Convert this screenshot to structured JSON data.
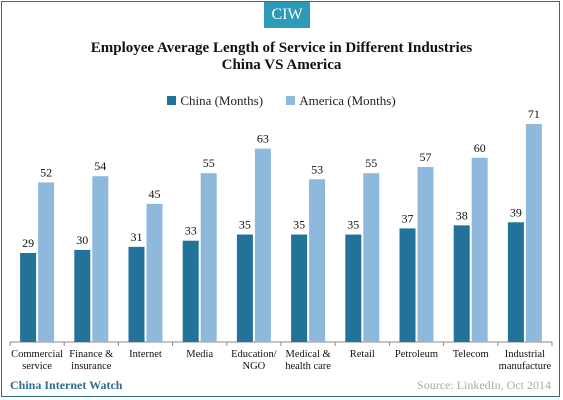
{
  "logo": "CIW",
  "watermark": "China Internet Watch",
  "source": "Source: LinkedIn, Oct 2014",
  "colors": {
    "china": "#22729a",
    "america": "#8fb9dc",
    "frame": "#2b6e8c",
    "logo_bg": "#2e9ab8"
  },
  "chart_data": {
    "type": "bar",
    "title": "Employee Average Length of Service in Different Industries",
    "subtitle": "China VS America",
    "legend_position": "top-center",
    "grid": false,
    "ylim": [
      0,
      75
    ],
    "categories": [
      [
        "Commercial",
        "service"
      ],
      [
        "Finance &",
        "insurance"
      ],
      [
        "Internet"
      ],
      [
        "Media"
      ],
      [
        "Education/",
        "NGO"
      ],
      [
        "Medical &",
        "health care"
      ],
      [
        "Retail"
      ],
      [
        "Petroleum"
      ],
      [
        "Telecom"
      ],
      [
        "Industrial",
        "manufacture"
      ]
    ],
    "series": [
      {
        "name": "China (Months)",
        "values": [
          29,
          30,
          31,
          33,
          35,
          35,
          35,
          37,
          38,
          39
        ]
      },
      {
        "name": "America (Months)",
        "values": [
          52,
          54,
          45,
          55,
          63,
          53,
          55,
          57,
          60,
          71
        ]
      }
    ]
  }
}
